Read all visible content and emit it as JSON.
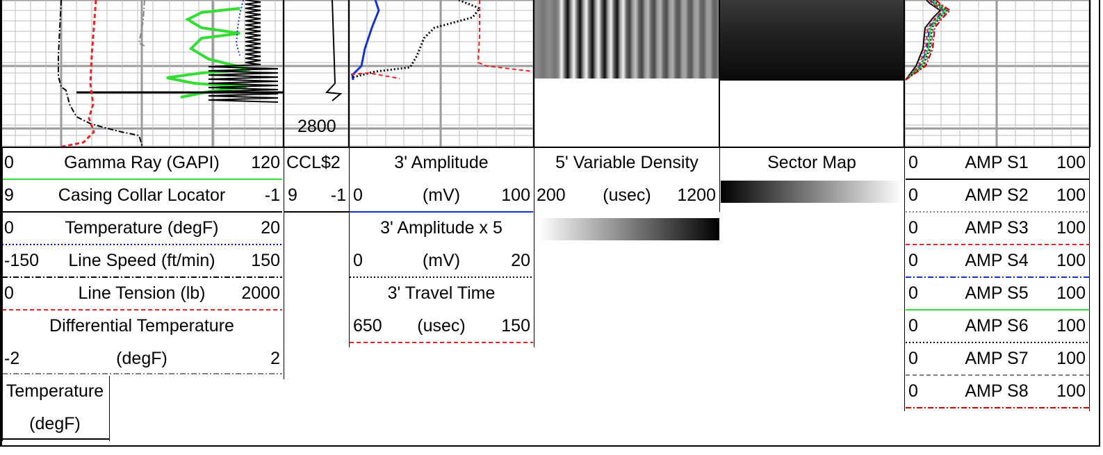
{
  "depth_label": "2800",
  "tracks": {
    "track1": [
      {
        "name": "Gamma Ray (GAPI)",
        "left": "0",
        "right": "120",
        "color": "#33dd33",
        "style": "solid"
      },
      {
        "name": "Casing Collar Locator",
        "left": "9",
        "right": "-1",
        "color": "#000000",
        "style": "solid"
      },
      {
        "name": "Temperature (degF)",
        "left": "0",
        "right": "20",
        "color": "#0000cc",
        "style": "dotted"
      },
      {
        "name": "Line Speed (ft/min)",
        "left": "-150",
        "right": "150",
        "color": "#000000",
        "style": "dashdot"
      },
      {
        "name": "Line Tension (lb)",
        "left": "0",
        "right": "2000",
        "color": "#ee2222",
        "style": "dashed"
      },
      {
        "name": "Differential Temperature",
        "unit": "(degF)",
        "left": "-2",
        "right": "2",
        "color": "#808080",
        "style": "dashdot"
      },
      {
        "name": "Temperature",
        "unit": "(degF)",
        "color": "#000000",
        "style": "solid"
      }
    ],
    "track2": [
      {
        "name": "CCL$2",
        "left": "9",
        "right": "-1",
        "color": "#000000",
        "style": "solid"
      }
    ],
    "track3": [
      {
        "name": "3' Amplitude",
        "unit": "(mV)",
        "left": "0",
        "right": "100",
        "color": "#1133cc",
        "style": "solid"
      },
      {
        "name": "3' Amplitude x 5",
        "unit": "(mV)",
        "left": "0",
        "right": "20",
        "color": "#000000",
        "style": "dotted"
      },
      {
        "name": "3' Travel Time",
        "unit": "(usec)",
        "left": "650",
        "right": "150",
        "color": "#ee2222",
        "style": "dashed"
      }
    ],
    "track4": [
      {
        "name": "5' Variable Density",
        "unit": "(usec)",
        "left": "200",
        "right": "1200"
      }
    ],
    "track5": [
      {
        "name": "Sector Map"
      }
    ],
    "track6": [
      {
        "name": "AMP S1",
        "left": "0",
        "right": "100",
        "color": "#000000",
        "style": "solid"
      },
      {
        "name": "AMP S2",
        "left": "0",
        "right": "100",
        "color": "#808080",
        "style": "dotted"
      },
      {
        "name": "AMP S3",
        "left": "0",
        "right": "100",
        "color": "#ee2222",
        "style": "dashed"
      },
      {
        "name": "AMP S4",
        "left": "0",
        "right": "100",
        "color": "#1133cc",
        "style": "dashdot"
      },
      {
        "name": "AMP S5",
        "left": "0",
        "right": "100",
        "color": "#33dd33",
        "style": "solid"
      },
      {
        "name": "AMP S6",
        "left": "0",
        "right": "100",
        "color": "#000000",
        "style": "dotted"
      },
      {
        "name": "AMP S7",
        "left": "0",
        "right": "100",
        "color": "#808080",
        "style": "dashed"
      },
      {
        "name": "AMP S8",
        "left": "0",
        "right": "100",
        "color": "#cc0000",
        "style": "dashdot"
      }
    ]
  },
  "chart_data": {
    "type": "line",
    "title": "",
    "depth_tick": 2800,
    "series": [
      {
        "name": "Gamma Ray (GAPI)",
        "values": [
          80,
          65,
          80,
          60,
          82,
          58,
          80,
          42,
          60,
          35,
          55
        ]
      },
      {
        "name": "Casing Collar Locator",
        "values": [
          3.5,
          4,
          3.2,
          4.5,
          3,
          5,
          2.5,
          6,
          -1,
          9,
          4
        ]
      },
      {
        "name": "Line Tension (lb)",
        "values": [
          820,
          830,
          840,
          835,
          845,
          840,
          835,
          830,
          850,
          840,
          800
        ]
      },
      {
        "name": "Line Speed (ft/min)",
        "values": [
          -120,
          -118,
          -118,
          -117,
          -116,
          -115,
          -114,
          -110,
          -100,
          -80,
          -70
        ]
      },
      {
        "name": "3' Amplitude",
        "values": [
          20,
          18,
          16,
          12,
          6,
          3,
          2
        ]
      },
      {
        "name": "3' Amplitude x 5",
        "values": [
          14,
          12,
          7,
          5,
          2,
          1
        ]
      },
      {
        "name": "3' Travel Time",
        "values": [
          296,
          294,
          296,
          150,
          140,
          200
        ]
      }
    ]
  }
}
